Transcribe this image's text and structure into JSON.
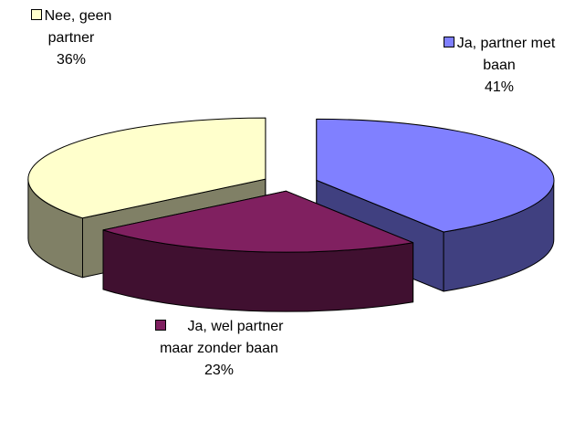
{
  "chart_data": {
    "type": "pie3d",
    "categories": [
      "Ja, partner met baan",
      "Ja, wel partner maar zonder baan",
      "Nee, geen partner"
    ],
    "values": [
      41,
      23,
      36
    ],
    "value_labels": [
      "41%",
      "23%",
      "36%"
    ],
    "colors": [
      "#8080ff",
      "#802060",
      "#ffffcc"
    ]
  }
}
